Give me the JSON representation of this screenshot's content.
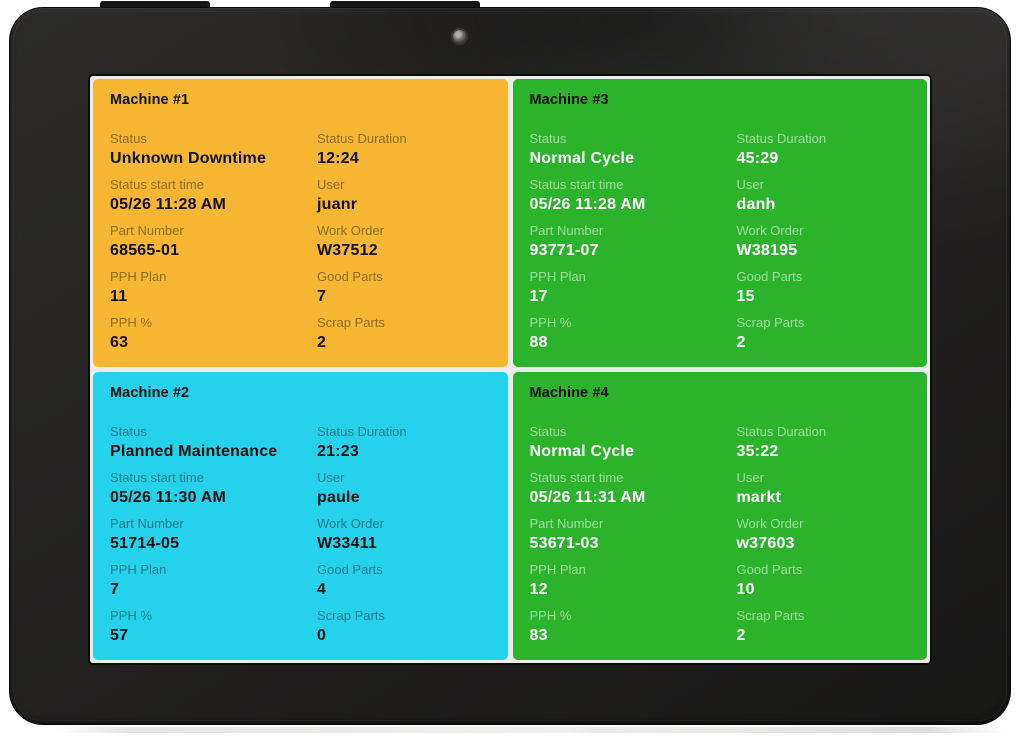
{
  "device": {
    "type": "tablet-kiosk",
    "bezel_color": "#232221",
    "screen_background": "#ececec"
  },
  "status_colors": {
    "unknown_downtime": "#F7B733",
    "planned_maintenance": "#25D2EB",
    "normal_cycle": "#2CB32C"
  },
  "dashboard": {
    "machines": [
      {
        "key": "machine-1",
        "title": "Machine #1",
        "status_color": "#F7B733",
        "text_theme": "dark",
        "fields": [
          {
            "key": "status",
            "label": "Status",
            "value": "Unknown Downtime"
          },
          {
            "key": "status-duration",
            "label": "Status Duration",
            "value": "12:24"
          },
          {
            "key": "status-start-time",
            "label": "Status start time",
            "value": "05/26 11:28 AM"
          },
          {
            "key": "user",
            "label": "User",
            "value": "juanr"
          },
          {
            "key": "part-number",
            "label": "Part Number",
            "value": "68565-01"
          },
          {
            "key": "work-order",
            "label": "Work Order",
            "value": "W37512"
          },
          {
            "key": "pph-plan",
            "label": "PPH Plan",
            "value": "11"
          },
          {
            "key": "good-parts",
            "label": "Good Parts",
            "value": "7"
          },
          {
            "key": "pph-percent",
            "label": "PPH %",
            "value": "63"
          },
          {
            "key": "scrap-parts",
            "label": "Scrap Parts",
            "value": "2"
          }
        ]
      },
      {
        "key": "machine-3",
        "title": "Machine #3",
        "status_color": "#2CB32C",
        "text_theme": "light",
        "fields": [
          {
            "key": "status",
            "label": "Status",
            "value": "Normal Cycle"
          },
          {
            "key": "status-duration",
            "label": "Status Duration",
            "value": "45:29"
          },
          {
            "key": "status-start-time",
            "label": "Status start time",
            "value": "05/26 11:28 AM"
          },
          {
            "key": "user",
            "label": "User",
            "value": "danh"
          },
          {
            "key": "part-number",
            "label": "Part Number",
            "value": "93771-07"
          },
          {
            "key": "work-order",
            "label": "Work Order",
            "value": "W38195"
          },
          {
            "key": "pph-plan",
            "label": "PPH Plan",
            "value": "17"
          },
          {
            "key": "good-parts",
            "label": "Good Parts",
            "value": "15"
          },
          {
            "key": "pph-percent",
            "label": "PPH %",
            "value": "88"
          },
          {
            "key": "scrap-parts",
            "label": "Scrap Parts",
            "value": "2"
          }
        ]
      },
      {
        "key": "machine-2",
        "title": "Machine #2",
        "status_color": "#25D2EB",
        "text_theme": "dark",
        "fields": [
          {
            "key": "status",
            "label": "Status",
            "value": "Planned Maintenance"
          },
          {
            "key": "status-duration",
            "label": "Status Duration",
            "value": "21:23"
          },
          {
            "key": "status-start-time",
            "label": "Status start time",
            "value": "05/26 11:30 AM"
          },
          {
            "key": "user",
            "label": "User",
            "value": "paule"
          },
          {
            "key": "part-number",
            "label": "Part Number",
            "value": "51714-05"
          },
          {
            "key": "work-order",
            "label": "Work Order",
            "value": "W33411"
          },
          {
            "key": "pph-plan",
            "label": "PPH Plan",
            "value": "7"
          },
          {
            "key": "good-parts",
            "label": "Good Parts",
            "value": "4"
          },
          {
            "key": "pph-percent",
            "label": "PPH %",
            "value": "57"
          },
          {
            "key": "scrap-parts",
            "label": "Scrap Parts",
            "value": "0"
          }
        ]
      },
      {
        "key": "machine-4",
        "title": "Machine #4",
        "status_color": "#2CB32C",
        "text_theme": "light",
        "fields": [
          {
            "key": "status",
            "label": "Status",
            "value": "Normal Cycle"
          },
          {
            "key": "status-duration",
            "label": "Status Duration",
            "value": "35:22"
          },
          {
            "key": "status-start-time",
            "label": "Status start time",
            "value": "05/26 11:31 AM"
          },
          {
            "key": "user",
            "label": "User",
            "value": "markt"
          },
          {
            "key": "part-number",
            "label": "Part Number",
            "value": "53671-03"
          },
          {
            "key": "work-order",
            "label": "Work Order",
            "value": "w37603"
          },
          {
            "key": "pph-plan",
            "label": "PPH Plan",
            "value": "12"
          },
          {
            "key": "good-parts",
            "label": "Good Parts",
            "value": "10"
          },
          {
            "key": "pph-percent",
            "label": "PPH %",
            "value": "83"
          },
          {
            "key": "scrap-parts",
            "label": "Scrap Parts",
            "value": "2"
          }
        ]
      }
    ]
  }
}
